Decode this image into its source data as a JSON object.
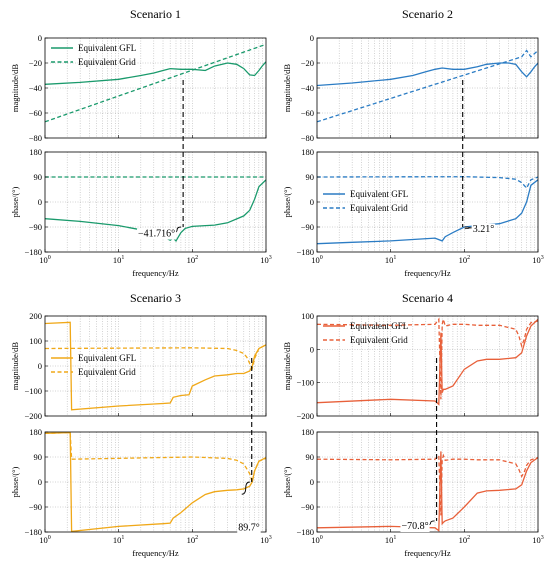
{
  "figure": {
    "colors": {
      "scenario1": "#1a9a6c",
      "scenario2": "#2b7cc4",
      "scenario3": "#f0a818",
      "scenario4": "#e8603a"
    }
  },
  "chart_data": [
    {
      "type": "line",
      "title": "Scenario 1",
      "color": "#1a9a6c",
      "xlabel": "frequency/Hz",
      "xscale": "log",
      "xlim": [
        1,
        1000
      ],
      "grid": true,
      "legend_placement": "top-left",
      "legend_panel": "magnitude",
      "magnitude": {
        "ylabel": "magnitude/dB",
        "ylim": [
          -80,
          0
        ],
        "yticks": [
          0,
          -20,
          -40,
          -60,
          -80
        ],
        "series": [
          {
            "name": "Equivalent GFL",
            "style": "solid",
            "x": [
              1,
              3,
              10,
              20,
              30,
              40,
              50,
              70,
              100,
              150,
              200,
              300,
              400,
              500,
              600,
              700,
              800,
              900,
              1000
            ],
            "y": [
              -37,
              -35.5,
              -33,
              -30,
              -28,
              -26,
              -24.5,
              -25,
              -25,
              -26,
              -22.5,
              -20,
              -21,
              -24.5,
              -29.5,
              -30,
              -26,
              -22,
              -19
            ]
          },
          {
            "name": "Equivalent Grid",
            "style": "dashed",
            "x": [
              1,
              1000
            ],
            "y": [
              -67,
              -5
            ]
          }
        ]
      },
      "phase": {
        "ylabel": "phase/(°)",
        "ylim": [
          -180,
          180
        ],
        "yticks": [
          180,
          90,
          0,
          -90,
          -180
        ],
        "series": [
          {
            "name": "Equivalent GFL",
            "style": "solid",
            "x": [
              1,
              3,
              10,
              20,
              40,
              50,
              55,
              60,
              70,
              80,
              100,
              150,
              200,
              300,
              500,
              600,
              700,
              800,
              1000
            ],
            "y": [
              -60,
              -70,
              -85,
              -100,
              -125,
              -138,
              -130,
              -140,
              -110,
              -95,
              -88,
              -85,
              -83,
              -75,
              -50,
              -30,
              10,
              55,
              80
            ]
          },
          {
            "name": "Equivalent Grid",
            "style": "dashed",
            "x": [
              1,
              1000
            ],
            "y": [
              90,
              90
            ]
          }
        ]
      },
      "marker": {
        "x": 75,
        "label": "−41.716°",
        "label_side": "left",
        "gap": [
          -90,
          -130
        ]
      }
    },
    {
      "type": "line",
      "title": "Scenario 2",
      "color": "#2b7cc4",
      "xlabel": "frequency/Hz",
      "xscale": "log",
      "xlim": [
        1,
        1000
      ],
      "grid": true,
      "legend_placement": "center-left",
      "legend_panel": "phase",
      "magnitude": {
        "ylabel": "magnitude/dB",
        "ylim": [
          -80,
          0
        ],
        "yticks": [
          0,
          -20,
          -40,
          -60,
          -80
        ],
        "series": [
          {
            "name": "Equivalent GFL",
            "style": "solid",
            "x": [
              1,
              3,
              10,
              20,
              30,
              40,
              50,
              70,
              100,
              150,
              200,
              300,
              400,
              500,
              600,
              700,
              800,
              900,
              1000
            ],
            "y": [
              -38,
              -36,
              -33,
              -30,
              -27,
              -25,
              -24,
              -25,
              -25,
              -23,
              -21,
              -20,
              -20,
              -21,
              -27,
              -31,
              -27,
              -23,
              -20
            ]
          },
          {
            "name": "Equivalent Grid",
            "style": "dashed",
            "x": [
              1,
              600,
              700,
              800,
              1000
            ],
            "y": [
              -67,
              -15,
              -10,
              -15,
              -10
            ]
          }
        ]
      },
      "phase": {
        "ylabel": "phase/(°)",
        "ylim": [
          -180,
          180
        ],
        "yticks": [
          180,
          90,
          0,
          -90,
          -180
        ],
        "series": [
          {
            "name": "Equivalent GFL",
            "style": "solid",
            "x": [
              1,
              3,
              10,
              20,
              40,
              50,
              55,
              70,
              100,
              150,
              200,
              300,
              500,
              600,
              700,
              800,
              1000
            ],
            "y": [
              -150,
              -145,
              -140,
              -135,
              -130,
              -140,
              -125,
              -110,
              -90,
              -85,
              -82,
              -78,
              -60,
              -40,
              0,
              60,
              80
            ]
          },
          {
            "name": "Equivalent Grid",
            "style": "dashed",
            "x": [
              1,
              100,
              300,
              500,
              600,
              700,
              800,
              1000
            ],
            "y": [
              90,
              91,
              88,
              82,
              70,
              50,
              80,
              90
            ]
          }
        ]
      },
      "marker": {
        "x": 95,
        "label": "3.21°",
        "label_side": "right",
        "gap": [
          -90,
          -96
        ]
      }
    },
    {
      "type": "line",
      "title": "Scenario 3",
      "color": "#f0a818",
      "xlabel": "frequency/Hz",
      "xscale": "log",
      "xlim": [
        1,
        1000
      ],
      "grid": true,
      "legend_placement": "center-left",
      "legend_panel": "magnitude",
      "magnitude": {
        "ylabel": "magnitude/dB",
        "ylim": [
          -200,
          200
        ],
        "yticks": [
          200,
          100,
          0,
          -100,
          -200
        ],
        "series": [
          {
            "name": "Equivalent GFL",
            "style": "solid",
            "x": [
              1,
              2.2,
              2.3,
              10,
              40,
              50,
              55,
              70,
              90,
              100,
              150,
              200,
              300,
              400,
              500,
              600,
              650,
              700,
              800,
              1000
            ],
            "y": [
              170,
              175,
              -175,
              -160,
              -150,
              -148,
              -125,
              -118,
              -115,
              -80,
              -55,
              -40,
              -35,
              -30,
              -30,
              -20,
              0,
              40,
              70,
              85
            ]
          },
          {
            "name": "Equivalent Grid",
            "style": "dashed",
            "x": [
              1,
              100,
              300,
              400,
              500,
              550,
              600,
              650,
              700,
              800,
              1000
            ],
            "y": [
              70,
              73,
              70,
              62,
              50,
              35,
              10,
              -10,
              30,
              70,
              85
            ]
          }
        ]
      },
      "phase": {
        "ylabel": "phase/(°)",
        "ylim": [
          -180,
          180
        ],
        "yticks": [
          180,
          90,
          0,
          -90,
          -180
        ],
        "series": [
          {
            "name": "Equivalent GFL",
            "style": "solid",
            "x": [
              1,
              2.2,
              2.3,
              10,
              40,
              50,
              55,
              70,
              100,
              150,
              200,
              300,
              400,
              500,
              600,
              650,
              700,
              800,
              1000
            ],
            "y": [
              175,
              178,
              -178,
              -160,
              -150,
              -148,
              -130,
              -110,
              -75,
              -45,
              -35,
              -30,
              -28,
              -25,
              -15,
              0,
              40,
              75,
              88
            ]
          },
          {
            "name": "Equivalent Grid",
            "style": "dashed",
            "x": [
              1,
              2.2,
              2.3,
              100,
              300,
              400,
              500,
              600,
              650,
              700,
              800,
              1000
            ],
            "y": [
              175,
              178,
              82,
              90,
              85,
              78,
              65,
              30,
              0,
              40,
              75,
              85
            ]
          }
        ]
      },
      "marker": {
        "x": 640,
        "label": "89.7°",
        "label_side": "left-below",
        "gap": [
          0,
          -88
        ]
      }
    },
    {
      "type": "line",
      "title": "Scenario 4",
      "color": "#e8603a",
      "xlabel": "frequency/Hz",
      "xscale": "log",
      "xlim": [
        1,
        1000
      ],
      "grid": true,
      "legend_placement": "top-left",
      "legend_panel": "magnitude",
      "magnitude": {
        "ylabel": "magnitude/dB",
        "ylim": [
          -200,
          100
        ],
        "yticks": [
          100,
          0,
          -100,
          -200
        ],
        "series": [
          {
            "name": "Equivalent GFL",
            "style": "solid",
            "x": [
              1,
              10,
              40,
              45,
              48,
              50,
              52,
              55,
              70,
              100,
              150,
              200,
              300,
              500,
              600,
              700,
              800,
              1000
            ],
            "y": [
              -160,
              -150,
              -155,
              -165,
              50,
              -130,
              -120,
              -120,
              -110,
              -60,
              -35,
              -30,
              -30,
              -25,
              -10,
              40,
              70,
              90
            ]
          },
          {
            "name": "Equivalent Grid",
            "style": "dashed",
            "x": [
              1,
              10,
              40,
              45,
              48,
              50,
              52,
              55,
              70,
              100,
              150,
              300,
              500,
              550,
              600,
              650,
              700,
              800,
              1000
            ],
            "y": [
              75,
              72,
              75,
              90,
              -150,
              75,
              90,
              70,
              75,
              75,
              72,
              72,
              60,
              40,
              10,
              30,
              60,
              80,
              85
            ]
          }
        ]
      },
      "phase": {
        "ylabel": "phase/(°)",
        "ylim": [
          -180,
          180
        ],
        "yticks": [
          180,
          90,
          0,
          -90,
          -180
        ],
        "series": [
          {
            "name": "Equivalent GFL",
            "style": "solid",
            "x": [
              1,
              10,
              40,
              45,
              48,
              50,
              52,
              55,
              70,
              100,
              150,
              200,
              300,
              500,
              600,
              700,
              800,
              1000
            ],
            "y": [
              -165,
              -160,
              -165,
              -175,
              110,
              -150,
              -145,
              -140,
              -130,
              -90,
              -40,
              -32,
              -30,
              -25,
              -10,
              40,
              70,
              88
            ]
          },
          {
            "name": "Equivalent Grid",
            "style": "dashed",
            "x": [
              1,
              10,
              40,
              45,
              48,
              50,
              52,
              55,
              70,
              100,
              150,
              300,
              500,
              550,
              600,
              650,
              700,
              800,
              1000
            ],
            "y": [
              82,
              80,
              82,
              95,
              -120,
              80,
              95,
              78,
              82,
              82,
              80,
              80,
              65,
              45,
              20,
              35,
              60,
              80,
              88
            ]
          }
        ]
      },
      "marker": {
        "x": 42,
        "label": "−70.8°",
        "label_side": "left",
        "gap": [
          -140,
          -170
        ]
      }
    }
  ]
}
